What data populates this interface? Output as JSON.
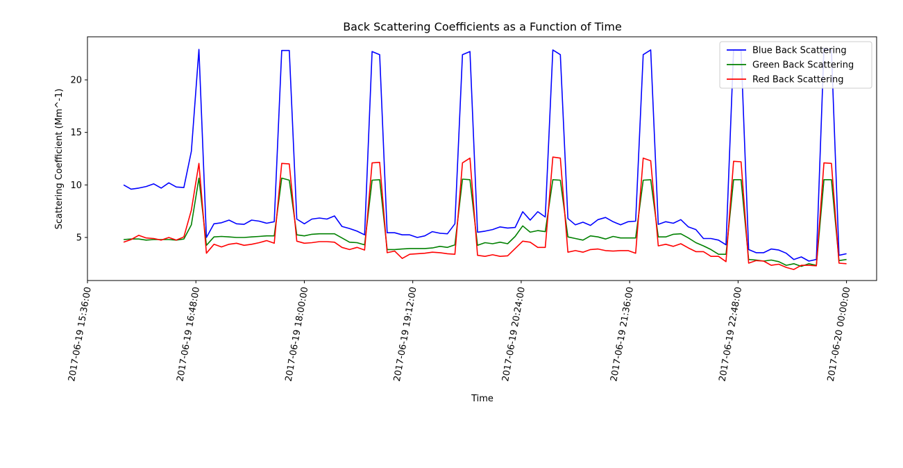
{
  "chart_data": {
    "type": "line",
    "title": "Back Scattering Coefficients as a Function of Time",
    "xlabel": "Time",
    "ylabel": "Scattering Coefficient (Mm^-1)",
    "x_ticks": [
      "2017-06-19 15:36:00",
      "2017-06-19 16:48:00",
      "2017-06-19 18:00:00",
      "2017-06-19 19:12:00",
      "2017-06-19 20:24:00",
      "2017-06-19 21:36:00",
      "2017-06-19 22:48:00",
      "2017-06-20 00:00:00"
    ],
    "x_range": [
      "2017-06-19 15:36:00",
      "2017-06-20 00:20:00"
    ],
    "y_ticks": [
      5,
      10,
      15,
      20
    ],
    "ylim": [
      0.9,
      24.1
    ],
    "grid": false,
    "legend_position": "top-right",
    "x": [
      "2017-06-19 16:00:00",
      "2017-06-19 16:05:00",
      "2017-06-19 16:10:00",
      "2017-06-19 16:15:00",
      "2017-06-19 16:20:00",
      "2017-06-19 16:25:00",
      "2017-06-19 16:30:00",
      "2017-06-19 16:35:00",
      "2017-06-19 16:40:00",
      "2017-06-19 16:45:00",
      "2017-06-19 16:50:00",
      "2017-06-19 16:55:00",
      "2017-06-19 17:00:00",
      "2017-06-19 17:05:00",
      "2017-06-19 17:10:00",
      "2017-06-19 17:15:00",
      "2017-06-19 17:20:00",
      "2017-06-19 17:25:00",
      "2017-06-19 17:30:00",
      "2017-06-19 17:35:00",
      "2017-06-19 17:40:00",
      "2017-06-19 17:45:00",
      "2017-06-19 17:50:00",
      "2017-06-19 17:55:00",
      "2017-06-19 18:00:00",
      "2017-06-19 18:05:00",
      "2017-06-19 18:10:00",
      "2017-06-19 18:15:00",
      "2017-06-19 18:20:00",
      "2017-06-19 18:25:00",
      "2017-06-19 18:30:00",
      "2017-06-19 18:35:00",
      "2017-06-19 18:40:00",
      "2017-06-19 18:45:00",
      "2017-06-19 18:50:00",
      "2017-06-19 18:55:00",
      "2017-06-19 19:00:00",
      "2017-06-19 19:05:00",
      "2017-06-19 19:10:00",
      "2017-06-19 19:15:00",
      "2017-06-19 19:20:00",
      "2017-06-19 19:25:00",
      "2017-06-19 19:30:00",
      "2017-06-19 19:35:00",
      "2017-06-19 19:40:00",
      "2017-06-19 19:45:00",
      "2017-06-19 19:50:00",
      "2017-06-19 19:55:00",
      "2017-06-19 20:00:00",
      "2017-06-19 20:05:00",
      "2017-06-19 20:10:00",
      "2017-06-19 20:15:00",
      "2017-06-19 20:20:00",
      "2017-06-19 20:25:00",
      "2017-06-19 20:30:00",
      "2017-06-19 20:35:00",
      "2017-06-19 20:40:00",
      "2017-06-19 20:45:00",
      "2017-06-19 20:50:00",
      "2017-06-19 20:55:00",
      "2017-06-19 21:00:00",
      "2017-06-19 21:05:00",
      "2017-06-19 21:10:00",
      "2017-06-19 21:15:00",
      "2017-06-19 21:20:00",
      "2017-06-19 21:25:00",
      "2017-06-19 21:30:00",
      "2017-06-19 21:35:00",
      "2017-06-19 21:40:00",
      "2017-06-19 21:45:00",
      "2017-06-19 21:50:00",
      "2017-06-19 21:55:00",
      "2017-06-19 22:00:00",
      "2017-06-19 22:05:00",
      "2017-06-19 22:10:00",
      "2017-06-19 22:15:00",
      "2017-06-19 22:20:00",
      "2017-06-19 22:25:00",
      "2017-06-19 22:30:00",
      "2017-06-19 22:35:00",
      "2017-06-19 22:40:00",
      "2017-06-19 22:45:00",
      "2017-06-19 22:50:00",
      "2017-06-19 22:55:00",
      "2017-06-19 23:00:00",
      "2017-06-19 23:05:00",
      "2017-06-19 23:10:00",
      "2017-06-19 23:15:00",
      "2017-06-19 23:20:00",
      "2017-06-19 23:25:00",
      "2017-06-19 23:30:00",
      "2017-06-19 23:35:00",
      "2017-06-19 23:40:00",
      "2017-06-19 23:45:00",
      "2017-06-19 23:50:00",
      "2017-06-19 23:55:00",
      "2017-06-20 00:00:00"
    ],
    "series": [
      {
        "name": "Blue Back Scattering",
        "color": "#0000ff",
        "values": [
          10.0,
          9.6,
          9.7,
          9.85,
          10.1,
          9.7,
          10.2,
          9.8,
          9.75,
          13.2,
          22.9,
          5.0,
          6.3,
          6.4,
          6.65,
          6.3,
          6.25,
          6.65,
          6.55,
          6.35,
          6.5,
          22.8,
          22.8,
          6.75,
          6.3,
          6.75,
          6.85,
          6.75,
          7.05,
          6.05,
          5.85,
          5.6,
          5.25,
          22.7,
          22.4,
          5.45,
          5.45,
          5.25,
          5.25,
          5.0,
          5.15,
          5.55,
          5.4,
          5.35,
          6.3,
          22.4,
          22.7,
          5.5,
          5.6,
          5.75,
          6.0,
          5.9,
          5.95,
          7.45,
          6.65,
          7.45,
          6.95,
          22.85,
          22.4,
          6.8,
          6.2,
          6.45,
          6.15,
          6.7,
          6.9,
          6.5,
          6.2,
          6.5,
          6.55,
          22.4,
          22.85,
          6.25,
          6.5,
          6.35,
          6.7,
          6.0,
          5.75,
          4.9,
          4.9,
          4.75,
          4.3,
          22.85,
          22.8,
          3.85,
          3.55,
          3.55,
          3.9,
          3.8,
          3.5,
          2.9,
          3.15,
          2.75,
          2.9,
          23.0,
          22.8,
          3.3,
          3.45
        ]
      },
      {
        "name": "Green Back Scattering",
        "color": "#008000",
        "values": [
          4.8,
          4.85,
          4.85,
          4.75,
          4.8,
          4.8,
          4.8,
          4.75,
          4.85,
          6.2,
          10.65,
          4.25,
          5.05,
          5.1,
          5.05,
          5.0,
          5.0,
          5.05,
          5.1,
          5.15,
          5.15,
          10.65,
          10.45,
          5.25,
          5.15,
          5.3,
          5.35,
          5.35,
          5.35,
          4.95,
          4.55,
          4.5,
          4.3,
          10.45,
          10.5,
          3.85,
          3.85,
          3.9,
          3.95,
          3.95,
          3.95,
          4.0,
          4.15,
          4.05,
          4.3,
          10.55,
          10.5,
          4.25,
          4.5,
          4.4,
          4.55,
          4.4,
          5.1,
          6.1,
          5.5,
          5.65,
          5.55,
          10.5,
          10.45,
          5.05,
          4.9,
          4.75,
          5.15,
          5.05,
          4.85,
          5.1,
          4.95,
          4.95,
          4.95,
          10.45,
          10.5,
          5.05,
          5.05,
          5.3,
          5.35,
          4.95,
          4.5,
          4.2,
          3.85,
          3.4,
          3.4,
          10.5,
          10.5,
          2.9,
          2.85,
          2.75,
          2.85,
          2.7,
          2.35,
          2.5,
          2.25,
          2.5,
          2.35,
          10.5,
          10.5,
          2.8,
          2.9
        ]
      },
      {
        "name": "Red Back Scattering",
        "color": "#ff0000",
        "values": [
          4.55,
          4.8,
          5.2,
          4.95,
          4.9,
          4.75,
          5.0,
          4.75,
          5.05,
          7.6,
          12.05,
          3.5,
          4.35,
          4.1,
          4.35,
          4.45,
          4.25,
          4.35,
          4.5,
          4.7,
          4.45,
          12.05,
          12.0,
          4.65,
          4.45,
          4.5,
          4.6,
          4.6,
          4.55,
          4.05,
          3.85,
          4.05,
          3.8,
          12.1,
          12.15,
          3.55,
          3.7,
          3.0,
          3.4,
          3.45,
          3.5,
          3.6,
          3.55,
          3.45,
          3.4,
          12.1,
          12.55,
          3.3,
          3.2,
          3.35,
          3.2,
          3.25,
          3.95,
          4.65,
          4.55,
          4.05,
          4.05,
          12.65,
          12.55,
          3.6,
          3.75,
          3.6,
          3.85,
          3.9,
          3.75,
          3.7,
          3.75,
          3.75,
          3.5,
          12.55,
          12.3,
          4.2,
          4.35,
          4.15,
          4.4,
          4.0,
          3.65,
          3.65,
          3.2,
          3.2,
          2.7,
          12.25,
          12.2,
          2.55,
          2.8,
          2.75,
          2.35,
          2.45,
          2.15,
          1.95,
          2.35,
          2.35,
          2.3,
          12.1,
          12.05,
          2.55,
          2.5
        ]
      }
    ]
  }
}
